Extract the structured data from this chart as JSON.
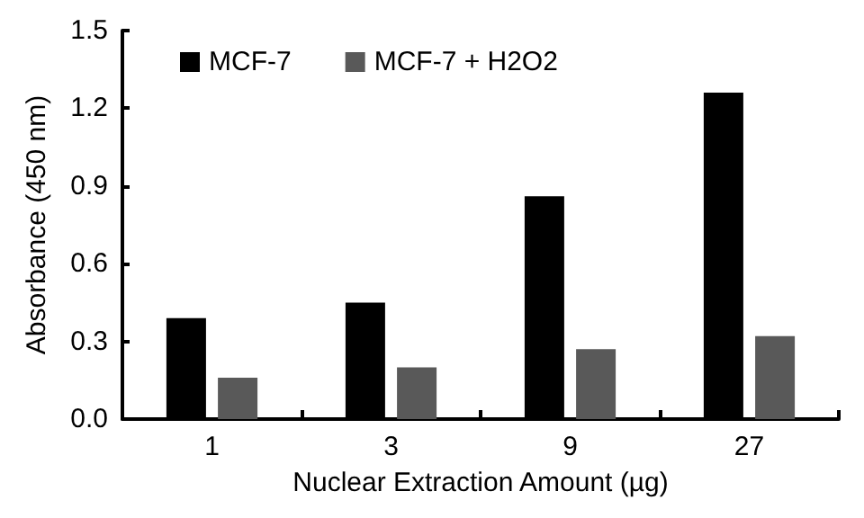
{
  "chart_data": {
    "type": "bar",
    "xlabel": "Nuclear Extraction Amount (µg)",
    "ylabel": "Absorbance (450 nm)",
    "categories": [
      "1",
      "3",
      "9",
      "27"
    ],
    "series": [
      {
        "name": "MCF-7",
        "color": "#000000",
        "values": [
          0.39,
          0.45,
          0.86,
          1.26
        ]
      },
      {
        "name": "MCF-7 + H2O2",
        "color": "#595959",
        "values": [
          0.16,
          0.2,
          0.27,
          0.32
        ]
      }
    ],
    "ylim": [
      0,
      1.5
    ],
    "yticks": [
      {
        "value": 0,
        "label": "0.0"
      },
      0.3,
      0.6,
      0.9,
      1.2,
      1.5
    ],
    "grid": false,
    "legend": "top"
  }
}
